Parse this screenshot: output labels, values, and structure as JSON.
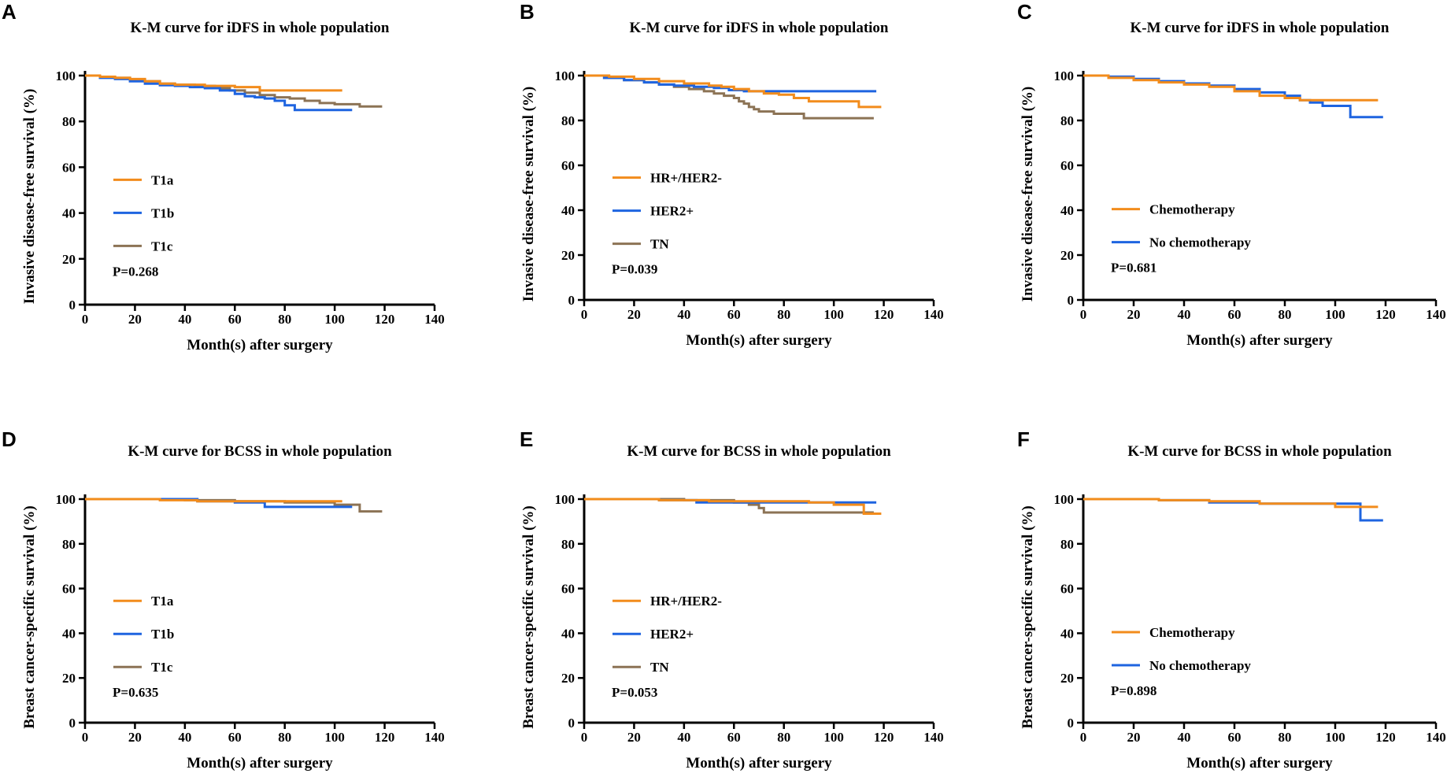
{
  "figure": {
    "colors": {
      "orange": "#F28C1C",
      "blue": "#1E64E0",
      "brown": "#8C7355",
      "axis": "#000000"
    }
  },
  "chart_data": [
    {
      "panel": "A",
      "type": "line",
      "step": true,
      "title": "K-M curve for iDFS in whole population",
      "xlabel": "Month(s) after surgery",
      "ylabel": "Invasive disease-free survival (%)",
      "xlim": [
        0,
        140
      ],
      "ylim": [
        0,
        100
      ],
      "xticks": [
        0,
        20,
        40,
        60,
        80,
        100,
        120,
        140
      ],
      "yticks": [
        0,
        20,
        40,
        60,
        80,
        100
      ],
      "p_value": "P=0.268",
      "series": [
        {
          "name": "T1a",
          "color": "#F28C1C",
          "x": [
            0,
            6,
            12,
            18,
            24,
            30,
            36,
            48,
            60,
            70,
            80,
            90,
            103
          ],
          "y": [
            100,
            99.5,
            99,
            98.5,
            97.5,
            96.5,
            96,
            95.5,
            95,
            93.5,
            93.5,
            93.5,
            93.5
          ]
        },
        {
          "name": "T1b",
          "color": "#1E64E0",
          "x": [
            0,
            6,
            12,
            18,
            24,
            30,
            36,
            42,
            48,
            54,
            60,
            64,
            68,
            72,
            76,
            80,
            84,
            88,
            96,
            107
          ],
          "y": [
            100,
            99,
            98.5,
            97.5,
            96.5,
            95.8,
            95.5,
            95,
            94.5,
            93.5,
            92,
            91,
            90.5,
            90,
            89,
            87,
            85,
            85,
            85,
            85
          ]
        },
        {
          "name": "T1c",
          "color": "#8C7355",
          "x": [
            0,
            6,
            12,
            18,
            24,
            30,
            36,
            44,
            52,
            58,
            64,
            70,
            76,
            82,
            88,
            94,
            100,
            110,
            119
          ],
          "y": [
            100,
            99.5,
            99,
            98,
            97.5,
            96.5,
            96,
            95.5,
            94.5,
            93.5,
            92.5,
            91.5,
            90.5,
            90,
            89,
            88,
            87.5,
            86.5,
            86.5
          ]
        }
      ]
    },
    {
      "panel": "B",
      "type": "line",
      "step": true,
      "title": "K-M curve for iDFS in whole population",
      "xlabel": "Month(s) after surgery",
      "ylabel": "Invasive disease-free survival (%)",
      "xlim": [
        0,
        140
      ],
      "ylim": [
        0,
        100
      ],
      "xticks": [
        0,
        20,
        40,
        60,
        80,
        100,
        120,
        140
      ],
      "yticks": [
        0,
        20,
        40,
        60,
        80,
        100
      ],
      "p_value": "P=0.039",
      "series": [
        {
          "name": "HR+/HER2-",
          "color": "#F28C1C",
          "x": [
            0,
            10,
            20,
            30,
            40,
            50,
            55,
            60,
            66,
            72,
            78,
            84,
            90,
            100,
            110,
            119
          ],
          "y": [
            100,
            99.5,
            98.5,
            97.5,
            96.5,
            95.5,
            95,
            94,
            93,
            92,
            91.5,
            90,
            88.5,
            88.5,
            86,
            86
          ]
        },
        {
          "name": "HER2+",
          "color": "#1E64E0",
          "x": [
            0,
            8,
            16,
            24,
            30,
            36,
            44,
            52,
            58,
            64,
            70,
            80,
            90,
            100,
            117
          ],
          "y": [
            100,
            99,
            98,
            97,
            96,
            95.5,
            95,
            94.5,
            93.5,
            93,
            93,
            93,
            93,
            93,
            93
          ]
        },
        {
          "name": "TN",
          "color": "#8C7355",
          "x": [
            0,
            8,
            16,
            24,
            30,
            36,
            42,
            48,
            52,
            56,
            60,
            62,
            64,
            66,
            68,
            70,
            72,
            76,
            88,
            100,
            116
          ],
          "y": [
            100,
            99,
            98,
            97,
            96,
            95,
            94,
            93,
            92,
            91,
            90,
            88.5,
            87.5,
            86,
            85,
            84,
            84,
            83,
            81,
            81,
            81
          ]
        }
      ]
    },
    {
      "panel": "C",
      "type": "line",
      "step": true,
      "title": "K-M curve for iDFS in whole population",
      "xlabel": "Month(s) after surgery",
      "ylabel": "Invasive disease-free survival (%)",
      "xlim": [
        0,
        140
      ],
      "ylim": [
        0,
        100
      ],
      "xticks": [
        0,
        20,
        40,
        60,
        80,
        100,
        120,
        140
      ],
      "yticks": [
        0,
        20,
        40,
        60,
        80,
        100
      ],
      "p_value": "P=0.681",
      "series": [
        {
          "name": "Chemotherapy",
          "color": "#F28C1C",
          "x": [
            0,
            10,
            20,
            30,
            40,
            50,
            60,
            70,
            80,
            86,
            90,
            100,
            117
          ],
          "y": [
            100,
            99,
            98,
            97,
            96,
            95,
            93,
            91,
            90,
            89,
            89,
            89,
            89
          ]
        },
        {
          "name": "No chemotherapy",
          "color": "#1E64E0",
          "x": [
            0,
            10,
            20,
            30,
            40,
            50,
            60,
            70,
            80,
            86,
            90,
            95,
            106,
            119
          ],
          "y": [
            100,
            99.5,
            98.5,
            97.5,
            96.5,
            95.5,
            94,
            92.5,
            91,
            89,
            88,
            86.5,
            81.5,
            81.5
          ]
        }
      ]
    },
    {
      "panel": "D",
      "type": "line",
      "step": true,
      "title": "K-M curve for BCSS in whole population",
      "xlabel": "Month(s) after surgery",
      "ylabel": "Breast cancer-specific survival (%)",
      "xlim": [
        0,
        140
      ],
      "ylim": [
        0,
        100
      ],
      "xticks": [
        0,
        20,
        40,
        60,
        80,
        100,
        120,
        140
      ],
      "yticks": [
        0,
        20,
        40,
        60,
        80,
        100
      ],
      "p_value": "P=0.635",
      "series": [
        {
          "name": "T1a",
          "color": "#F28C1C",
          "x": [
            0,
            30,
            45,
            60,
            80,
            103
          ],
          "y": [
            100,
            99.5,
            99,
            99,
            99,
            99
          ]
        },
        {
          "name": "T1b",
          "color": "#1E64E0",
          "x": [
            0,
            30,
            45,
            60,
            72,
            90,
            107
          ],
          "y": [
            100,
            100,
            99,
            98.5,
            96.5,
            96.5,
            96.5
          ]
        },
        {
          "name": "T1c",
          "color": "#8C7355",
          "x": [
            0,
            40,
            60,
            80,
            100,
            110,
            119
          ],
          "y": [
            100,
            99.5,
            99,
            98.5,
            97.5,
            94.5,
            94.5
          ]
        }
      ]
    },
    {
      "panel": "E",
      "type": "line",
      "step": true,
      "title": "K-M curve for BCSS in whole population",
      "xlabel": "Month(s) after surgery",
      "ylabel": "Breast cancer-specific survival (%)",
      "xlim": [
        0,
        140
      ],
      "ylim": [
        0,
        100
      ],
      "xticks": [
        0,
        20,
        40,
        60,
        80,
        100,
        120,
        140
      ],
      "yticks": [
        0,
        20,
        40,
        60,
        80,
        100
      ],
      "p_value": "P=0.053",
      "series": [
        {
          "name": "HR+/HER2-",
          "color": "#F28C1C",
          "x": [
            0,
            30,
            50,
            70,
            90,
            100,
            110,
            112,
            119
          ],
          "y": [
            100,
            99.5,
            99,
            99,
            98.5,
            97.5,
            97.5,
            93.5,
            93.5
          ]
        },
        {
          "name": "HER2+",
          "color": "#1E64E0",
          "x": [
            0,
            30,
            45,
            60,
            80,
            100,
            117
          ],
          "y": [
            100,
            99.5,
            98.5,
            98.5,
            98.5,
            98.5,
            98.5
          ]
        },
        {
          "name": "TN",
          "color": "#8C7355",
          "x": [
            0,
            40,
            60,
            66,
            70,
            72,
            90,
            116
          ],
          "y": [
            100,
            99.5,
            98.5,
            97.5,
            96,
            94,
            94,
            94
          ]
        }
      ]
    },
    {
      "panel": "F",
      "type": "line",
      "step": true,
      "title": "K-M curve for BCSS in whole population",
      "xlabel": "Month(s) after surgery",
      "ylabel": "Breast cancer-specific survival (%)",
      "xlim": [
        0,
        140
      ],
      "ylim": [
        0,
        100
      ],
      "xticks": [
        0,
        20,
        40,
        60,
        80,
        100,
        120,
        140
      ],
      "yticks": [
        0,
        20,
        40,
        60,
        80,
        100
      ],
      "p_value": "P=0.898",
      "series": [
        {
          "name": "Chemotherapy",
          "color": "#F28C1C",
          "x": [
            0,
            30,
            50,
            70,
            90,
            100,
            110,
            117
          ],
          "y": [
            100,
            99.5,
            99,
            98,
            98,
            96.5,
            96.5,
            96.5
          ]
        },
        {
          "name": "No chemotherapy",
          "color": "#1E64E0",
          "x": [
            0,
            30,
            50,
            70,
            90,
            100,
            110,
            119
          ],
          "y": [
            100,
            99.5,
            98.5,
            98,
            98,
            98,
            90.5,
            90.5
          ]
        }
      ]
    }
  ]
}
